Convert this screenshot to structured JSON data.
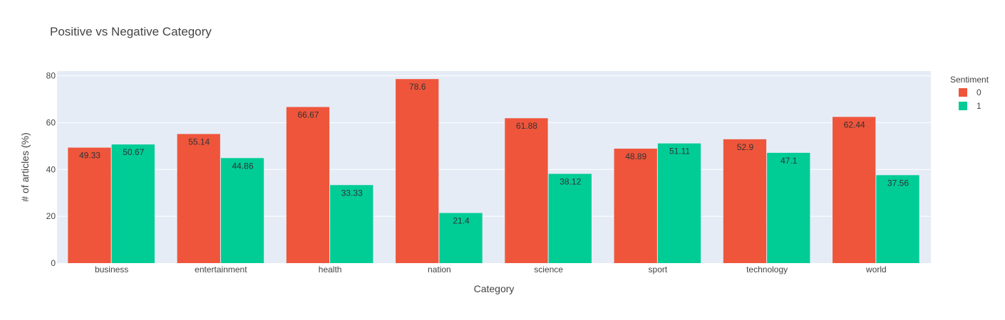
{
  "chart_data": {
    "type": "bar",
    "title": "Positive vs Negative Category",
    "xlabel": "Category",
    "ylabel": "# of articles (%)",
    "categories": [
      "business",
      "entertainment",
      "health",
      "nation",
      "science",
      "sport",
      "technology",
      "world"
    ],
    "series": [
      {
        "name": "0",
        "color": "#EF553B",
        "values": [
          49.33,
          55.14,
          66.67,
          78.6,
          61.88,
          48.89,
          52.9,
          62.44
        ]
      },
      {
        "name": "1",
        "color": "#00CC96",
        "values": [
          50.67,
          44.86,
          33.33,
          21.4,
          38.12,
          51.11,
          47.1,
          37.56
        ]
      }
    ],
    "ylim": [
      0,
      82
    ],
    "yticks": [
      0,
      20,
      40,
      60,
      80
    ],
    "grid": true,
    "plot_background": "#E5ECF6",
    "legend": {
      "title": "Sentiment",
      "placement": "top-right"
    }
  }
}
